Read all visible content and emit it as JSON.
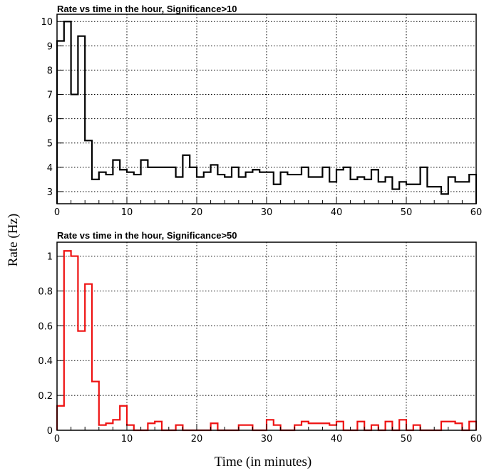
{
  "figure": {
    "ylabel": "Rate (Hz)",
    "xlabel": "Time (in minutes)"
  },
  "chart_data": [
    {
      "type": "line",
      "title": "Rate vs time in the hour, Significance>10",
      "xlabel": "Time (in minutes)",
      "ylabel": "Rate (Hz)",
      "xlim": [
        0,
        60
      ],
      "ylim": [
        2.5,
        10.3
      ],
      "xticks": [
        0,
        10,
        20,
        30,
        40,
        50,
        60
      ],
      "yticks": [
        3,
        4,
        5,
        6,
        7,
        8,
        9,
        10
      ],
      "grid": true,
      "color": "#000000",
      "bin_width": 1,
      "x": [
        0,
        1,
        2,
        3,
        4,
        5,
        6,
        7,
        8,
        9,
        10,
        11,
        12,
        13,
        14,
        15,
        16,
        17,
        18,
        19,
        20,
        21,
        22,
        23,
        24,
        25,
        26,
        27,
        28,
        29,
        30,
        31,
        32,
        33,
        34,
        35,
        36,
        37,
        38,
        39,
        40,
        41,
        42,
        43,
        44,
        45,
        46,
        47,
        48,
        49,
        50,
        51,
        52,
        53,
        54,
        55,
        56,
        57,
        58,
        59
      ],
      "values": [
        9.2,
        10.0,
        7.0,
        9.4,
        5.1,
        3.5,
        3.8,
        3.7,
        4.3,
        3.9,
        3.8,
        3.7,
        4.3,
        4.0,
        4.0,
        4.0,
        4.0,
        3.6,
        4.5,
        4.0,
        3.6,
        3.8,
        4.1,
        3.7,
        3.6,
        4.0,
        3.6,
        3.8,
        3.9,
        3.8,
        3.8,
        3.3,
        3.8,
        3.7,
        3.7,
        4.0,
        3.6,
        3.6,
        4.0,
        3.4,
        3.9,
        4.0,
        3.5,
        3.6,
        3.5,
        3.9,
        3.4,
        3.6,
        3.1,
        3.4,
        3.3,
        3.3,
        4.0,
        3.2,
        3.2,
        2.9,
        3.6,
        3.4,
        3.4,
        3.7
      ]
    },
    {
      "type": "line",
      "title": "Rate vs time in the hour, Significance>50",
      "xlabel": "Time (in minutes)",
      "ylabel": "Rate (Hz)",
      "xlim": [
        0,
        60
      ],
      "ylim": [
        0,
        1.08
      ],
      "xticks": [
        0,
        10,
        20,
        30,
        40,
        50,
        60
      ],
      "yticks": [
        0,
        0.2,
        0.4,
        0.6,
        0.8,
        1
      ],
      "grid": true,
      "color": "#ee1111",
      "bin_width": 1,
      "x": [
        0,
        1,
        2,
        3,
        4,
        5,
        6,
        7,
        8,
        9,
        10,
        11,
        12,
        13,
        14,
        15,
        16,
        17,
        18,
        19,
        20,
        21,
        22,
        23,
        24,
        25,
        26,
        27,
        28,
        29,
        30,
        31,
        32,
        33,
        34,
        35,
        36,
        37,
        38,
        39,
        40,
        41,
        42,
        43,
        44,
        45,
        46,
        47,
        48,
        49,
        50,
        51,
        52,
        53,
        54,
        55,
        56,
        57,
        58,
        59
      ],
      "values": [
        0.14,
        1.03,
        1.0,
        0.57,
        0.84,
        0.28,
        0.03,
        0.04,
        0.06,
        0.14,
        0.03,
        0.0,
        0.0,
        0.04,
        0.05,
        0.0,
        0.0,
        0.03,
        0.0,
        0.0,
        0.0,
        0.0,
        0.04,
        0.0,
        0.0,
        0.0,
        0.03,
        0.03,
        0.0,
        0.0,
        0.06,
        0.03,
        0.0,
        0.0,
        0.03,
        0.05,
        0.04,
        0.04,
        0.04,
        0.03,
        0.05,
        0.0,
        0.0,
        0.05,
        0.0,
        0.03,
        0.0,
        0.05,
        0.0,
        0.06,
        0.0,
        0.03,
        0.0,
        0.0,
        0.0,
        0.05,
        0.05,
        0.04,
        0.0,
        0.05
      ]
    }
  ]
}
